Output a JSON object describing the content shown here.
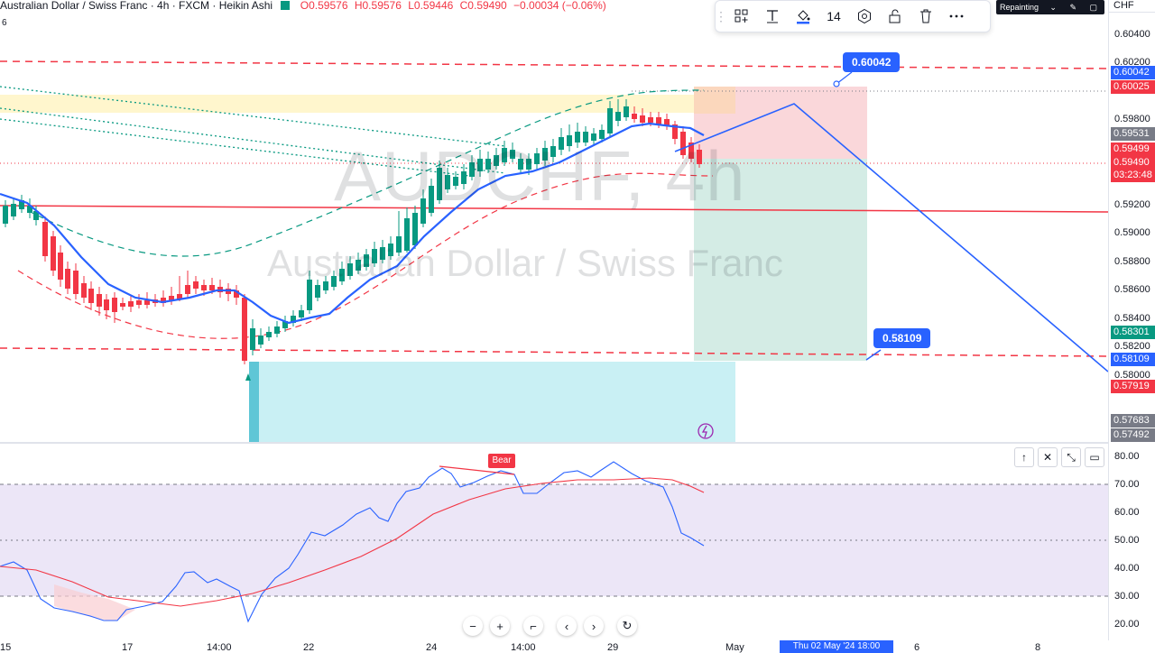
{
  "header": {
    "symbol_line": "Australian Dollar / Swiss Franc · 4h · FXCM · Heikin Ashi",
    "open": "O0.59576",
    "high": "H0.59576",
    "low": "L0.59446",
    "close": "C0.59490",
    "change": "−0.00034 (−0.06%)",
    "side_number": "6"
  },
  "watermark": {
    "symbol": "AUDCHF, 4h",
    "name": "Australian Dollar / Swiss Franc"
  },
  "toolbar": {
    "line_width": "14",
    "icons": [
      "template-icon",
      "text-icon",
      "paint-bucket-icon",
      "width-icon",
      "settings-icon",
      "unlock-icon",
      "trash-icon",
      "more-icon"
    ]
  },
  "repainting_label": "Repainting",
  "currency": "CHF",
  "price_axis": {
    "ticks": [
      "0.60400",
      "0.60200",
      "0.59800",
      "0.59200",
      "0.59000",
      "0.58800",
      "0.58600",
      "0.58400",
      "0.58200",
      "0.58000"
    ],
    "labels": [
      {
        "text": "0.60042",
        "color": "#2962ff"
      },
      {
        "text": "0.60025",
        "color": "#f23645"
      },
      {
        "text": "0.59531",
        "color": "#787b86"
      },
      {
        "text": "0.59499",
        "color": "#f23645"
      },
      {
        "text": "0.59490",
        "color": "#f23645"
      },
      {
        "text": "03:23:48",
        "color": "#f23645"
      },
      {
        "text": "0.58301",
        "color": "#089981"
      },
      {
        "text": "0.58109",
        "color": "#2962ff"
      },
      {
        "text": "0.57919",
        "color": "#f23645"
      },
      {
        "text": "0.57683",
        "color": "#787b86"
      },
      {
        "text": "0.57492",
        "color": "#787b86"
      }
    ]
  },
  "callouts": {
    "upper": "0.60042",
    "lower": "0.58109"
  },
  "rsi": {
    "ticks": [
      "80.00",
      "70.00",
      "60.00",
      "50.00",
      "40.00",
      "30.00",
      "20.00"
    ],
    "bear_label": "Bear",
    "upper_band": 70,
    "lower_band": 30
  },
  "time_axis": {
    "ticks": [
      "15",
      "17",
      "14:00",
      "22",
      "24",
      "14:00",
      "29",
      "May",
      "6",
      "8"
    ],
    "crosshair_date": "Thu 02 May '24   18:00"
  },
  "colors": {
    "bull": "#089981",
    "bear": "#f23645",
    "ma": "#2962ff",
    "zone_yellow": "#fff4c4",
    "zone_loss": "#f9cdd1",
    "zone_profit": "#c9e7df",
    "zone_cyan": "#c9f0f4",
    "rsi_band": "#ece6f7"
  }
}
